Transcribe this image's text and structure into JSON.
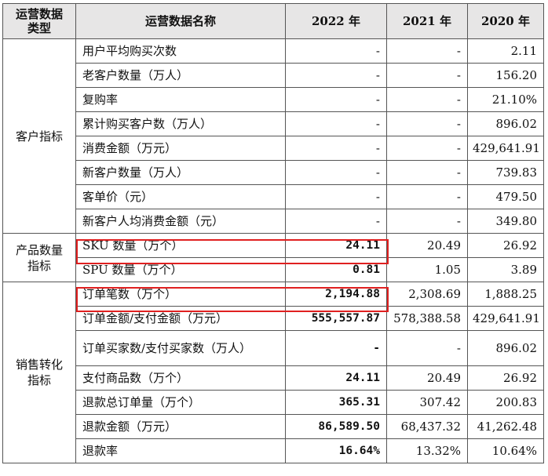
{
  "header": {
    "category": "运营数据类型",
    "name": "运营数据名称",
    "y2022": "2022 年",
    "y2021": "2021 年",
    "y2020": "2020 年"
  },
  "categories": [
    "客户指标",
    "产品数量指标",
    "销售转化指标"
  ],
  "rows": [
    {
      "name": "用户平均购买次数",
      "y2022": "-",
      "y2021": "-",
      "y2020": "2.11"
    },
    {
      "name": "老客户数量（万人）",
      "y2022": "-",
      "y2021": "-",
      "y2020": "156.20"
    },
    {
      "name": "复购率",
      "y2022": "-",
      "y2021": "-",
      "y2020": "21.10%"
    },
    {
      "name": "累计购买客户数（万人）",
      "y2022": "-",
      "y2021": "-",
      "y2020": "896.02"
    },
    {
      "name": "消费金额（万元）",
      "y2022": "-",
      "y2021": "-",
      "y2020": "429,641.91"
    },
    {
      "name": "新客户数量（万人）",
      "y2022": "-",
      "y2021": "-",
      "y2020": "739.83"
    },
    {
      "name": "客单价（元）",
      "y2022": "-",
      "y2021": "-",
      "y2020": "479.50"
    },
    {
      "name": "新客户人均消费金额（元）",
      "y2022": "-",
      "y2021": "-",
      "y2020": "349.80"
    },
    {
      "name": "SKU 数量（万个）",
      "y2022": "24.11",
      "y2021": "20.49",
      "y2020": "26.92"
    },
    {
      "name": "SPU 数量（万个）",
      "y2022": "0.81",
      "y2021": "1.05",
      "y2020": "3.89"
    },
    {
      "name": "订单笔数（万个）",
      "y2022": "2,194.88",
      "y2021": "2,308.69",
      "y2020": "1,888.25"
    },
    {
      "name": "订单金额/支付金额（万元）",
      "y2022": "555,557.87",
      "y2021": "578,388.58",
      "y2020": "429,641.91"
    },
    {
      "name": "订单买家数/支付买家数（万人）",
      "y2022": "-",
      "y2021": "-",
      "y2020": "896.02"
    },
    {
      "name": "支付商品数（万个）",
      "y2022": "24.11",
      "y2021": "20.49",
      "y2020": "26.92"
    },
    {
      "name": "退款总订单量（万个）",
      "y2022": "365.31",
      "y2021": "307.42",
      "y2020": "200.83"
    },
    {
      "name": "退款金额（万元）",
      "y2022": "86,589.50",
      "y2021": "68,437.32",
      "y2020": "41,262.48"
    },
    {
      "name": "退款率",
      "y2022": "16.64%",
      "y2021": "13.32%",
      "y2020": "10.64%"
    }
  ],
  "colors": {
    "header_bg": "#e7e6e6",
    "border": "#555555",
    "highlight": "#e02020"
  }
}
